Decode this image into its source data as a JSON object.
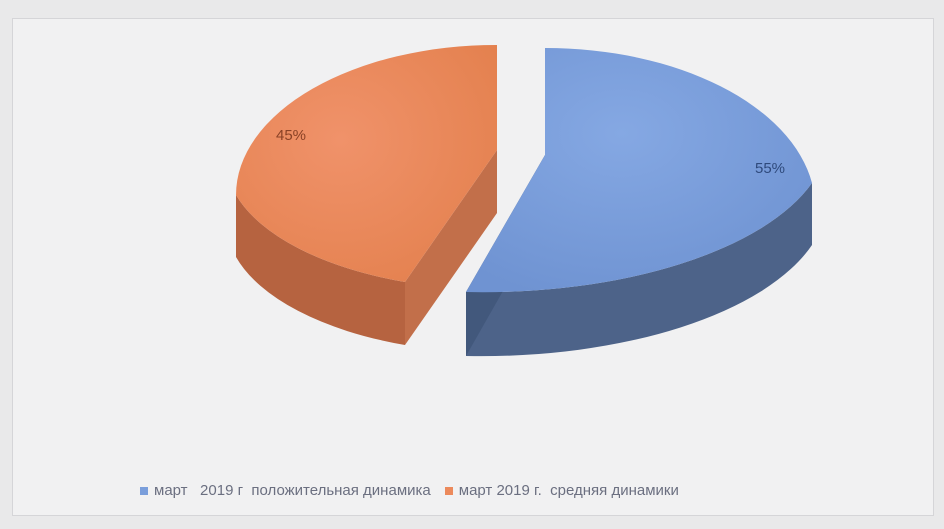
{
  "chart_data": {
    "type": "pie",
    "slices": [
      {
        "label": "март   2019 г  положительная динамика",
        "value": 55,
        "display": "55%",
        "color": "#7a9edb",
        "side_color": "#4d6389"
      },
      {
        "label": "март 2019 г.  средняя динамики",
        "value": 45,
        "display": "45%",
        "color": "#ec8a5c",
        "side_color": "#b66340"
      }
    ],
    "legend_position": "bottom"
  }
}
